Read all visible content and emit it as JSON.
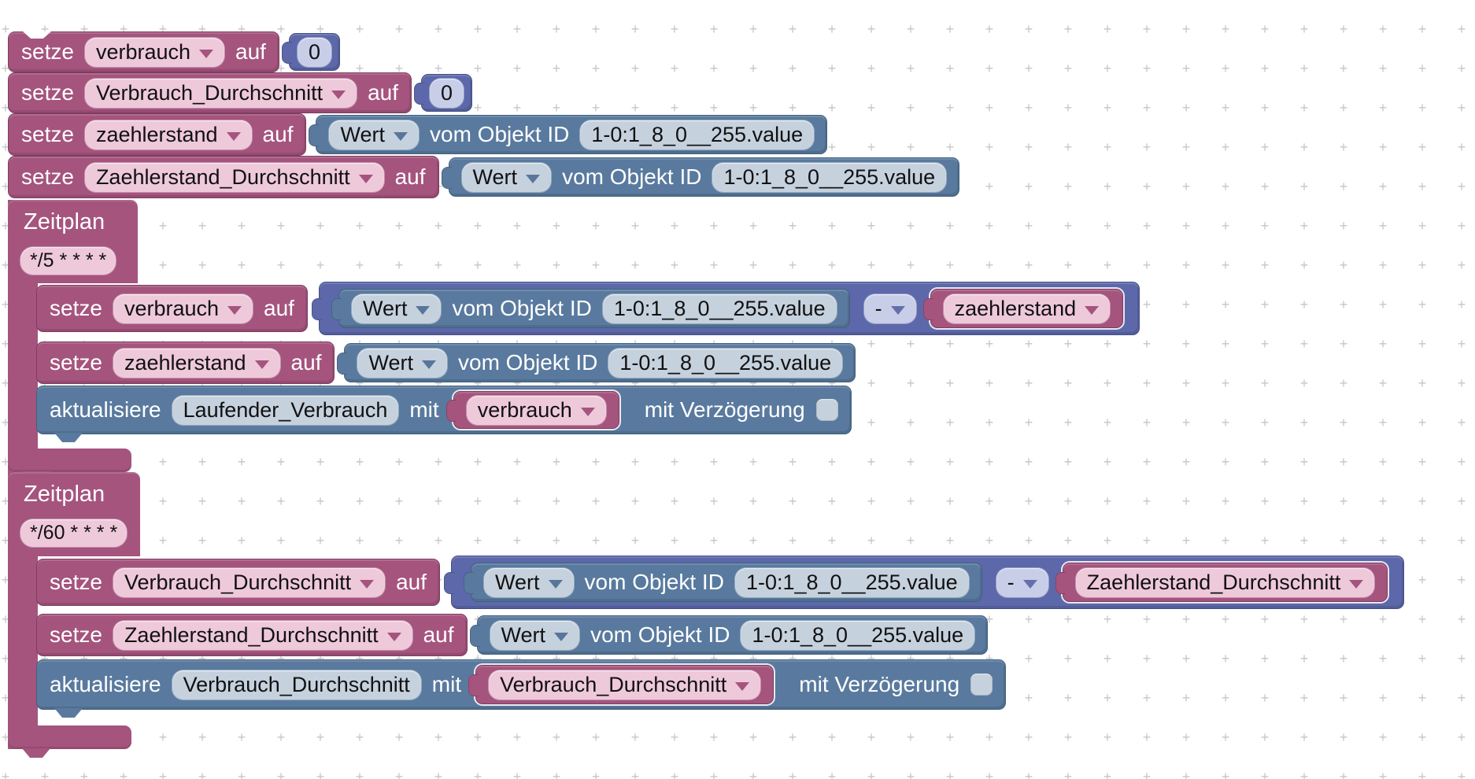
{
  "workspace": {
    "type": "blockly-editor",
    "background": "#ffffff"
  },
  "labels": {
    "setze": "setze",
    "auf": "auf",
    "wert": "Wert",
    "vom_objekt_id": "vom Objekt ID",
    "minus": "-",
    "zeitplan": "Zeitplan",
    "aktualisiere": "aktualisiere",
    "mit": "mit",
    "mit_verzoegerung": "mit Verzögerung",
    "zero": "0"
  },
  "fields": {
    "object_id": "1-0:1_8_0__255.value",
    "cron_every_5": "*/5 * * * *",
    "cron_every_60": "*/60 * * * *",
    "delay_checkbox_checked": false
  },
  "variables": {
    "verbrauch": "verbrauch",
    "verbrauch_durchschnitt": "Verbrauch_Durchschnitt",
    "zaehlerstand": "zaehlerstand",
    "zaehlerstand_durchschnitt": "Zaehlerstand_Durchschnitt",
    "laufender_verbrauch": "Laufender_Verbrauch"
  },
  "colors": {
    "variable_block": "#a5547e",
    "variable_block_border": "#7e3c5e",
    "variable_field": "#eec9da",
    "math_block": "#5c68aa",
    "math_block_border": "#454f87",
    "math_field": "#c8cee8",
    "state_block": "#597a9e",
    "state_block_border": "#41617f",
    "state_field": "#c6d1de",
    "grid_cross": "#c6c6c6",
    "canvas": "#ffffff"
  },
  "program": [
    {
      "block": "setze",
      "variable": "verbrauch",
      "value": "0"
    },
    {
      "block": "setze",
      "variable": "Verbrauch_Durchschnitt",
      "value": "0"
    },
    {
      "block": "setze",
      "variable": "zaehlerstand",
      "value": "Wert vom Objekt ID 1-0:1_8_0__255.value"
    },
    {
      "block": "setze",
      "variable": "Zaehlerstand_Durchschnitt",
      "value": "Wert vom Objekt ID 1-0:1_8_0__255.value"
    },
    {
      "block": "Zeitplan",
      "cron": "*/5 * * * *",
      "body": [
        {
          "block": "setze",
          "variable": "verbrauch",
          "value": "(Wert vom Objekt ID 1-0:1_8_0__255.value) - zaehlerstand"
        },
        {
          "block": "setze",
          "variable": "zaehlerstand",
          "value": "Wert vom Objekt ID 1-0:1_8_0__255.value"
        },
        {
          "block": "aktualisiere",
          "state": "Laufender_Verbrauch",
          "with": "verbrauch",
          "mit_verzoegerung_checked": false
        }
      ]
    },
    {
      "block": "Zeitplan",
      "cron": "*/60 * * * *",
      "body": [
        {
          "block": "setze",
          "variable": "Verbrauch_Durchschnitt",
          "value": "(Wert vom Objekt ID 1-0:1_8_0__255.value) - Zaehlerstand_Durchschnitt"
        },
        {
          "block": "setze",
          "variable": "Zaehlerstand_Durchschnitt",
          "value": "Wert vom Objekt ID 1-0:1_8_0__255.value"
        },
        {
          "block": "aktualisiere",
          "state": "Verbrauch_Durchschnitt",
          "with": "Verbrauch_Durchschnitt",
          "mit_verzoegerung_checked": false
        }
      ]
    }
  ]
}
